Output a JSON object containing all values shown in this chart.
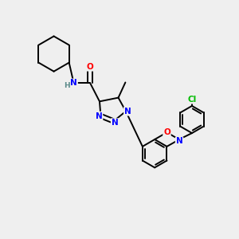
{
  "bg_color": "#efefef",
  "atom_colors": {
    "N": "#0000ff",
    "O": "#ff0000",
    "Cl": "#00bb00",
    "C": "#000000",
    "H": "#5a8a8a"
  },
  "bond_color": "#000000",
  "bond_width": 1.4,
  "figsize": [
    3.0,
    3.0
  ],
  "dpi": 100
}
